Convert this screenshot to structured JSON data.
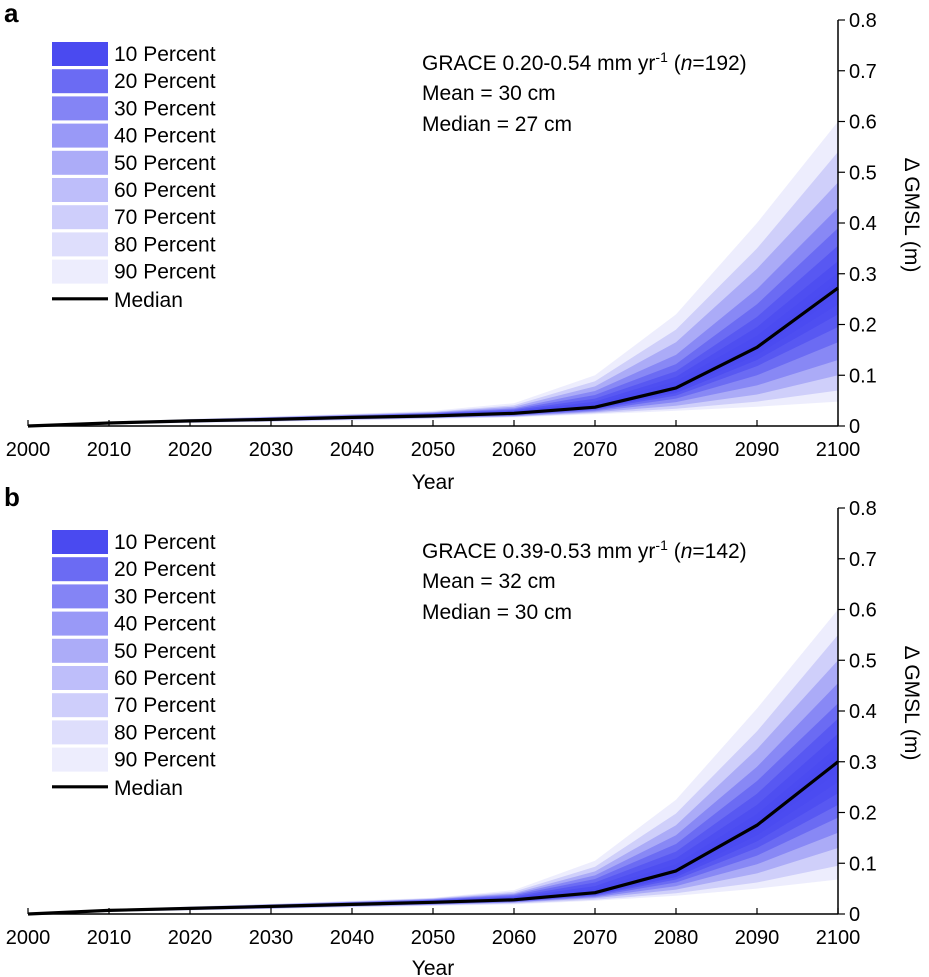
{
  "chart_data": [
    {
      "type": "area",
      "panel_label": "a",
      "xlabel": "Year",
      "ylabel": "Δ GMSL (m)",
      "xlim": [
        2000,
        2100
      ],
      "ylim": [
        0,
        0.8
      ],
      "xticks": [
        2000,
        2010,
        2020,
        2030,
        2040,
        2050,
        2060,
        2070,
        2080,
        2090,
        2100
      ],
      "yticks": [
        0,
        0.1,
        0.2,
        0.3,
        0.4,
        0.5,
        0.6,
        0.7,
        0.8
      ],
      "xtick_labels": [
        "2000",
        "2010",
        "2020",
        "2030",
        "2040",
        "2050",
        "2060",
        "2070",
        "2080",
        "2090",
        "2100"
      ],
      "ytick_labels": [
        "0",
        "0.1",
        "0.2",
        "0.3",
        "0.4",
        "0.5",
        "0.6",
        "0.7",
        "0.8"
      ],
      "legend": {
        "placement": "top-left",
        "entries": [
          "10 Percent",
          "20 Percent",
          "30 Percent",
          "40 Percent",
          "50 Percent",
          "60 Percent",
          "70 Percent",
          "80 Percent",
          "90 Percent"
        ],
        "median_label": "Median"
      },
      "annotation": {
        "line1_pre": "GRACE 0.20-0.54 mm yr",
        "line1_sup": "-1",
        "line1_mid": " (",
        "line1_n": "n",
        "line1_post": "=192)",
        "line2": "Mean = 30 cm",
        "line3": "Median = 27 cm"
      },
      "x": [
        2000,
        2010,
        2020,
        2030,
        2040,
        2050,
        2060,
        2070,
        2080,
        2090,
        2100
      ],
      "median": [
        0.0,
        0.006,
        0.01,
        0.013,
        0.017,
        0.02,
        0.025,
        0.037,
        0.075,
        0.155,
        0.272
      ],
      "bands": [
        {
          "level": "90 Percent",
          "lower": [
            0,
            0.003,
            0.006,
            0.008,
            0.011,
            0.014,
            0.017,
            0.023,
            0.03,
            0.038,
            0.048
          ],
          "upper": [
            0,
            0.008,
            0.014,
            0.019,
            0.024,
            0.03,
            0.045,
            0.1,
            0.22,
            0.4,
            0.6
          ]
        },
        {
          "level": "80 Percent",
          "lower": [
            0,
            0.0035,
            0.0065,
            0.009,
            0.012,
            0.015,
            0.018,
            0.025,
            0.034,
            0.048,
            0.07
          ],
          "upper": [
            0,
            0.0078,
            0.0135,
            0.018,
            0.023,
            0.028,
            0.041,
            0.088,
            0.19,
            0.35,
            0.54
          ]
        },
        {
          "level": "70 Percent",
          "lower": [
            0,
            0.004,
            0.007,
            0.0095,
            0.013,
            0.016,
            0.019,
            0.027,
            0.04,
            0.062,
            0.1
          ],
          "upper": [
            0,
            0.0075,
            0.013,
            0.0175,
            0.022,
            0.027,
            0.038,
            0.078,
            0.165,
            0.31,
            0.48
          ]
        },
        {
          "level": "60 Percent",
          "lower": [
            0,
            0.0043,
            0.0075,
            0.01,
            0.0135,
            0.0165,
            0.02,
            0.029,
            0.047,
            0.08,
            0.13
          ],
          "upper": [
            0,
            0.0072,
            0.0125,
            0.017,
            0.021,
            0.026,
            0.035,
            0.069,
            0.14,
            0.27,
            0.43
          ]
        },
        {
          "level": "50 Percent",
          "lower": [
            0,
            0.0046,
            0.008,
            0.0105,
            0.014,
            0.017,
            0.021,
            0.031,
            0.054,
            0.1,
            0.165
          ],
          "upper": [
            0,
            0.007,
            0.012,
            0.0165,
            0.0205,
            0.025,
            0.033,
            0.061,
            0.122,
            0.24,
            0.39
          ]
        },
        {
          "level": "40 Percent",
          "lower": [
            0,
            0.0049,
            0.0085,
            0.011,
            0.0145,
            0.0175,
            0.022,
            0.033,
            0.06,
            0.118,
            0.195
          ],
          "upper": [
            0,
            0.0068,
            0.0115,
            0.016,
            0.02,
            0.024,
            0.031,
            0.054,
            0.108,
            0.215,
            0.355
          ]
        },
        {
          "level": "30 Percent",
          "lower": [
            0,
            0.0052,
            0.009,
            0.0115,
            0.015,
            0.018,
            0.023,
            0.034,
            0.065,
            0.13,
            0.22
          ],
          "upper": [
            0,
            0.0066,
            0.011,
            0.0155,
            0.0195,
            0.023,
            0.029,
            0.048,
            0.097,
            0.195,
            0.325
          ]
        },
        {
          "level": "20 Percent",
          "lower": [
            0,
            0.0055,
            0.0093,
            0.012,
            0.0157,
            0.0187,
            0.0237,
            0.0352,
            0.069,
            0.14,
            0.24
          ],
          "upper": [
            0,
            0.0064,
            0.0107,
            0.0145,
            0.0185,
            0.0218,
            0.0275,
            0.0435,
            0.088,
            0.178,
            0.302
          ]
        },
        {
          "level": "10 Percent",
          "lower": [
            0,
            0.0058,
            0.0097,
            0.0125,
            0.0163,
            0.0193,
            0.0243,
            0.0362,
            0.072,
            0.148,
            0.256
          ],
          "upper": [
            0,
            0.0062,
            0.0103,
            0.0135,
            0.0177,
            0.0207,
            0.0258,
            0.0395,
            0.081,
            0.165,
            0.287
          ]
        }
      ]
    },
    {
      "type": "area",
      "panel_label": "b",
      "xlabel": "Year",
      "ylabel": "Δ GMSL (m)",
      "xlim": [
        2000,
        2100
      ],
      "ylim": [
        0,
        0.8
      ],
      "xticks": [
        2000,
        2010,
        2020,
        2030,
        2040,
        2050,
        2060,
        2070,
        2080,
        2090,
        2100
      ],
      "yticks": [
        0,
        0.1,
        0.2,
        0.3,
        0.4,
        0.5,
        0.6,
        0.7,
        0.8
      ],
      "xtick_labels": [
        "2000",
        "2010",
        "2020",
        "2030",
        "2040",
        "2050",
        "2060",
        "2070",
        "2080",
        "2090",
        "2100"
      ],
      "ytick_labels": [
        "0",
        "0.1",
        "0.2",
        "0.3",
        "0.4",
        "0.5",
        "0.6",
        "0.7",
        "0.8"
      ],
      "legend": {
        "placement": "top-left",
        "entries": [
          "10 Percent",
          "20 Percent",
          "30 Percent",
          "40 Percent",
          "50 Percent",
          "60 Percent",
          "70 Percent",
          "80 Percent",
          "90 Percent"
        ],
        "median_label": "Median"
      },
      "annotation": {
        "line1_pre": "GRACE 0.39-0.53 mm yr",
        "line1_sup": "-1",
        "line1_mid": " (",
        "line1_n": "n",
        "line1_post": "=142)",
        "line2": "Mean = 32 cm",
        "line3": "Median = 30 cm"
      },
      "x": [
        2000,
        2010,
        2020,
        2030,
        2040,
        2050,
        2060,
        2070,
        2080,
        2090,
        2100
      ],
      "median": [
        0.0,
        0.007,
        0.011,
        0.015,
        0.019,
        0.023,
        0.028,
        0.042,
        0.085,
        0.175,
        0.3
      ],
      "bands": [
        {
          "level": "90 Percent",
          "lower": [
            0,
            0.004,
            0.007,
            0.01,
            0.013,
            0.016,
            0.019,
            0.026,
            0.036,
            0.05,
            0.068
          ],
          "upper": [
            0,
            0.009,
            0.015,
            0.02,
            0.026,
            0.032,
            0.047,
            0.105,
            0.225,
            0.405,
            0.6
          ]
        },
        {
          "level": "80 Percent",
          "lower": [
            0,
            0.0045,
            0.0075,
            0.0105,
            0.014,
            0.017,
            0.0205,
            0.028,
            0.041,
            0.062,
            0.095
          ],
          "upper": [
            0,
            0.0088,
            0.0145,
            0.0195,
            0.025,
            0.031,
            0.044,
            0.093,
            0.198,
            0.36,
            0.55
          ]
        },
        {
          "level": "70 Percent",
          "lower": [
            0,
            0.005,
            0.008,
            0.011,
            0.015,
            0.018,
            0.022,
            0.031,
            0.048,
            0.08,
            0.13
          ],
          "upper": [
            0,
            0.0085,
            0.014,
            0.019,
            0.024,
            0.03,
            0.041,
            0.084,
            0.175,
            0.325,
            0.5
          ]
        },
        {
          "level": "60 Percent",
          "lower": [
            0,
            0.0053,
            0.0085,
            0.0115,
            0.0155,
            0.0188,
            0.023,
            0.033,
            0.055,
            0.098,
            0.16
          ],
          "upper": [
            0,
            0.0082,
            0.0135,
            0.0185,
            0.0235,
            0.029,
            0.039,
            0.076,
            0.155,
            0.29,
            0.455
          ]
        },
        {
          "level": "50 Percent",
          "lower": [
            0,
            0.0056,
            0.009,
            0.012,
            0.016,
            0.0195,
            0.024,
            0.035,
            0.062,
            0.115,
            0.19
          ],
          "upper": [
            0,
            0.008,
            0.013,
            0.018,
            0.023,
            0.028,
            0.037,
            0.069,
            0.138,
            0.262,
            0.415
          ]
        },
        {
          "level": "40 Percent",
          "lower": [
            0,
            0.0059,
            0.0095,
            0.0127,
            0.0166,
            0.0202,
            0.025,
            0.037,
            0.068,
            0.13,
            0.215
          ],
          "upper": [
            0,
            0.0078,
            0.0125,
            0.0173,
            0.0222,
            0.027,
            0.0345,
            0.062,
            0.123,
            0.237,
            0.385
          ]
        },
        {
          "level": "30 Percent",
          "lower": [
            0,
            0.0062,
            0.01,
            0.0133,
            0.0172,
            0.0208,
            0.026,
            0.038,
            0.073,
            0.143,
            0.238
          ],
          "upper": [
            0,
            0.0076,
            0.012,
            0.0166,
            0.0213,
            0.026,
            0.0325,
            0.055,
            0.11,
            0.215,
            0.355
          ]
        },
        {
          "level": "20 Percent",
          "lower": [
            0,
            0.0065,
            0.0103,
            0.0139,
            0.0178,
            0.0215,
            0.0267,
            0.0393,
            0.077,
            0.155,
            0.26
          ],
          "upper": [
            0,
            0.0074,
            0.0116,
            0.0159,
            0.0203,
            0.0248,
            0.0305,
            0.049,
            0.098,
            0.197,
            0.33
          ]
        },
        {
          "level": "10 Percent",
          "lower": [
            0,
            0.0068,
            0.0107,
            0.0145,
            0.0184,
            0.0222,
            0.0273,
            0.0405,
            0.081,
            0.165,
            0.28
          ],
          "upper": [
            0,
            0.0072,
            0.0113,
            0.0155,
            0.0196,
            0.0238,
            0.0288,
            0.0445,
            0.09,
            0.185,
            0.318
          ]
        }
      ]
    }
  ],
  "colors": {
    "band_base": "#4a4af0",
    "median_line": "#000000",
    "axis": "#000000",
    "band_opacity_by_level": [
      1.0,
      0.82,
      0.68,
      0.56,
      0.46,
      0.36,
      0.27,
      0.18,
      0.1
    ]
  }
}
